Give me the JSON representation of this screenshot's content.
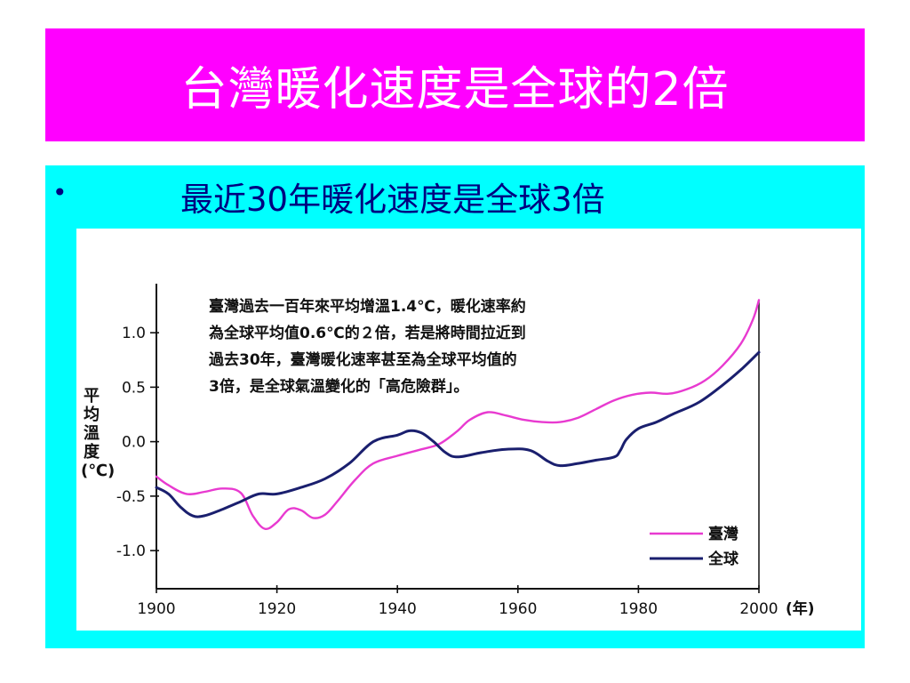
{
  "title": "台灣暖化速度是全球的2倍",
  "bullet": {
    "symbol": "•",
    "text": "最近30年暖化速度是全球3倍"
  },
  "colors": {
    "title_bg": "#ff00ff",
    "panel_bg": "#00ffff",
    "taiwan_line": "#e83ad0",
    "global_line": "#1a1f6e"
  },
  "chart_data": {
    "type": "line",
    "annotation": [
      "臺灣過去一百年來平均增溫1.4℃，暖化速率約",
      "為全球平均值0.6℃的２倍，若是將時間拉近到",
      "過去30年，臺灣暖化速率甚至為全球平均值的",
      "3倍，是全球氣溫變化的「高危險群」。"
    ],
    "ylabel": [
      "平",
      "均",
      "溫",
      "度",
      "(℃)"
    ],
    "xlabel_suffix": "(年)",
    "xlim": [
      1900,
      2000
    ],
    "ylim": [
      -1.35,
      1.45
    ],
    "x_ticks": [
      1900,
      1920,
      1940,
      1960,
      1980,
      2000
    ],
    "y_ticks": [
      {
        "value": 1.0,
        "label": "1.0"
      },
      {
        "value": 0.5,
        "label": "0.5"
      },
      {
        "value": 0.0,
        "label": "0.0"
      },
      {
        "value": -0.5,
        "label": "-0.5"
      },
      {
        "value": -1.0,
        "label": "-1.0"
      }
    ],
    "series": [
      {
        "name": "臺灣",
        "color": "#e83ad0",
        "x": [
          1900,
          1902,
          1905,
          1908,
          1911,
          1914,
          1916,
          1918,
          1920,
          1922,
          1924,
          1926,
          1928,
          1930,
          1933,
          1936,
          1940,
          1944,
          1947,
          1950,
          1952,
          1955,
          1958,
          1961,
          1964,
          1967,
          1970,
          1973,
          1976,
          1979,
          1982,
          1985,
          1988,
          1991,
          1994,
          1997,
          1999,
          2000
        ],
        "y": [
          -0.32,
          -0.4,
          -0.48,
          -0.46,
          -0.43,
          -0.47,
          -0.68,
          -0.8,
          -0.74,
          -0.62,
          -0.63,
          -0.7,
          -0.67,
          -0.55,
          -0.35,
          -0.2,
          -0.13,
          -0.07,
          -0.02,
          0.1,
          0.2,
          0.27,
          0.24,
          0.2,
          0.18,
          0.18,
          0.22,
          0.3,
          0.38,
          0.43,
          0.45,
          0.44,
          0.48,
          0.56,
          0.7,
          0.9,
          1.12,
          1.3
        ]
      },
      {
        "name": "全球",
        "color": "#1a1f6e",
        "x": [
          1900,
          1902,
          1904,
          1906,
          1908,
          1911,
          1914,
          1917,
          1920,
          1924,
          1928,
          1932,
          1936,
          1940,
          1942,
          1944,
          1946,
          1948,
          1950,
          1954,
          1958,
          1962,
          1965,
          1967,
          1970,
          1973,
          1976,
          1977,
          1978,
          1980,
          1983,
          1986,
          1990,
          1994,
          1997,
          2000
        ],
        "y": [
          -0.42,
          -0.48,
          -0.6,
          -0.68,
          -0.68,
          -0.62,
          -0.55,
          -0.48,
          -0.48,
          -0.42,
          -0.34,
          -0.2,
          0.0,
          0.06,
          0.1,
          0.08,
          0.0,
          -0.1,
          -0.14,
          -0.1,
          -0.07,
          -0.08,
          -0.18,
          -0.22,
          -0.2,
          -0.17,
          -0.14,
          -0.08,
          0.02,
          0.12,
          0.18,
          0.26,
          0.36,
          0.52,
          0.66,
          0.82
        ]
      }
    ]
  }
}
